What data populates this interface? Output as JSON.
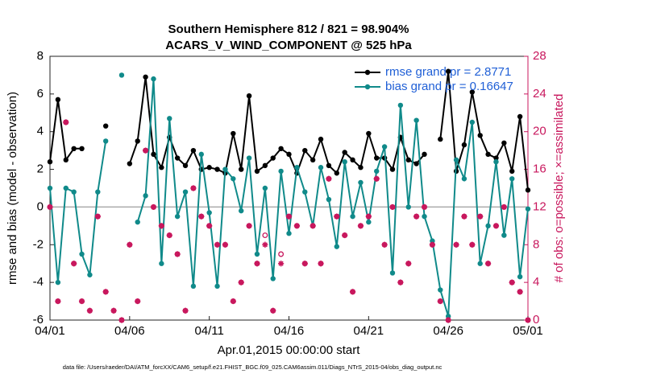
{
  "chart_data": {
    "type": "line",
    "title": "Southern Hemisphere 812 / 821 = 98.904%",
    "subtitle": "ACARS_V_WIND_COMPONENT @ 525 hPa",
    "x_label": "Apr.01,2015 00:00:00 start",
    "y_label": "rmse and bias (model - observation)",
    "y2_label": "# of obs: o=possible; ×=assimilated",
    "footnote": "data file: /Users/raeder/DAI/ATM_forcXX/CAM6_setup/f.e21.FHIST_BGC.f09_025.CAM6assim.011/Diags_NTrS_2015-04/obs_diag_output.nc",
    "x": [
      0,
      0.5,
      1,
      1.5,
      2,
      2.5,
      3,
      3.5,
      4,
      4.5,
      5,
      5.5,
      6,
      6.5,
      7,
      7.5,
      8,
      8.5,
      9,
      9.5,
      10,
      10.5,
      11,
      11.5,
      12,
      12.5,
      13,
      13.5,
      14,
      14.5,
      15,
      15.5,
      16,
      16.5,
      17,
      17.5,
      18,
      18.5,
      19,
      19.5,
      20,
      20.5,
      21,
      21.5,
      22,
      22.5,
      23,
      23.5,
      24,
      24.5,
      25,
      25.5,
      26,
      26.5,
      27,
      27.5,
      28,
      28.5,
      29,
      29.5,
      30
    ],
    "xlim": [
      0,
      30
    ],
    "xticks": [
      {
        "value": 0,
        "label": "04/01"
      },
      {
        "value": 5,
        "label": "04/06"
      },
      {
        "value": 10,
        "label": "04/11"
      },
      {
        "value": 15,
        "label": "04/16"
      },
      {
        "value": 20,
        "label": "04/21"
      },
      {
        "value": 25,
        "label": "04/26"
      },
      {
        "value": 30,
        "label": "05/01"
      }
    ],
    "ylim": [
      -6,
      8
    ],
    "yticks": [
      -6,
      -4,
      -2,
      0,
      2,
      4,
      6,
      8
    ],
    "y2lim": [
      0,
      28
    ],
    "y2ticks": [
      0,
      4,
      8,
      12,
      16,
      20,
      24,
      28
    ],
    "legend": "upper right",
    "series": [
      {
        "name": "rmse grand pr = 2.8771",
        "color": "#000000",
        "marker": "dot",
        "values": [
          2.4,
          5.7,
          2.5,
          3.1,
          3.1,
          null,
          null,
          4.3,
          null,
          null,
          2.3,
          3.5,
          6.9,
          2.8,
          2.1,
          3.7,
          2.6,
          2.2,
          3.0,
          2.0,
          2.1,
          2.0,
          1.8,
          3.9,
          2.0,
          5.9,
          1.9,
          2.2,
          2.6,
          3.1,
          2.8,
          1.8,
          3.0,
          2.5,
          3.6,
          2.2,
          1.8,
          2.9,
          2.5,
          2.1,
          3.9,
          2.6,
          2.6,
          2.0,
          3.7,
          2.5,
          2.3,
          2.8,
          null,
          3.6,
          7.2,
          1.9,
          3.3,
          6.1,
          3.8,
          2.8,
          2.6,
          3.4,
          1.9,
          4.8,
          0.9
        ]
      },
      {
        "name": "bias grand pr = 0.16647",
        "color": "#108a8a",
        "marker": "dot",
        "values": [
          1.0,
          -4.0,
          1.0,
          0.8,
          -2.5,
          -3.6,
          0.8,
          3.5,
          null,
          7.0,
          null,
          -0.8,
          0.6,
          6.8,
          -3.0,
          4.7,
          -0.5,
          0.8,
          -4.2,
          2.8,
          -0.3,
          -4.2,
          2.0,
          1.5,
          -0.2,
          2.6,
          -2.5,
          1.0,
          -3.8,
          1.9,
          -1.4,
          2.1,
          0.8,
          -1.0,
          2.1,
          0.4,
          -2.1,
          2.4,
          -0.5,
          1.3,
          -0.8,
          1.9,
          3.2,
          -3.5,
          5.4,
          0.0,
          4.6,
          -0.5,
          -1.8,
          -4.4,
          -5.8,
          2.5,
          1.5,
          4.5,
          -3.0,
          -1.0,
          2.4,
          -1.5,
          1.5,
          -3.7,
          -0.1
        ]
      },
      {
        "color": "#c8175d",
        "marker": "circle",
        "axis": "y2",
        "values": [
          12,
          2,
          21,
          6,
          2,
          1,
          11,
          3,
          1,
          0,
          8,
          2,
          18,
          12,
          10,
          9,
          7,
          1,
          14,
          11,
          10,
          8,
          8,
          2,
          4,
          10,
          6,
          9,
          1,
          7,
          11,
          10,
          6,
          10,
          6,
          15,
          11,
          9,
          3,
          10,
          11,
          15,
          8,
          12,
          4,
          6,
          11,
          12,
          8,
          2,
          0,
          8,
          11,
          8,
          11,
          6,
          10,
          12,
          4,
          3,
          0
        ]
      },
      {
        "color": "#c8175d",
        "marker": "star",
        "axis": "y2",
        "values": [
          12,
          2,
          21,
          6,
          2,
          1,
          11,
          3,
          1,
          0,
          8,
          2,
          18,
          12,
          10,
          9,
          7,
          1,
          14,
          11,
          10,
          8,
          8,
          2,
          4,
          10,
          6,
          8,
          1,
          6,
          11,
          10,
          6,
          10,
          6,
          15,
          11,
          9,
          3,
          10,
          11,
          15,
          8,
          12,
          4,
          6,
          11,
          12,
          8,
          2,
          0,
          8,
          11,
          8,
          11,
          6,
          10,
          12,
          4,
          3,
          0
        ]
      }
    ]
  }
}
